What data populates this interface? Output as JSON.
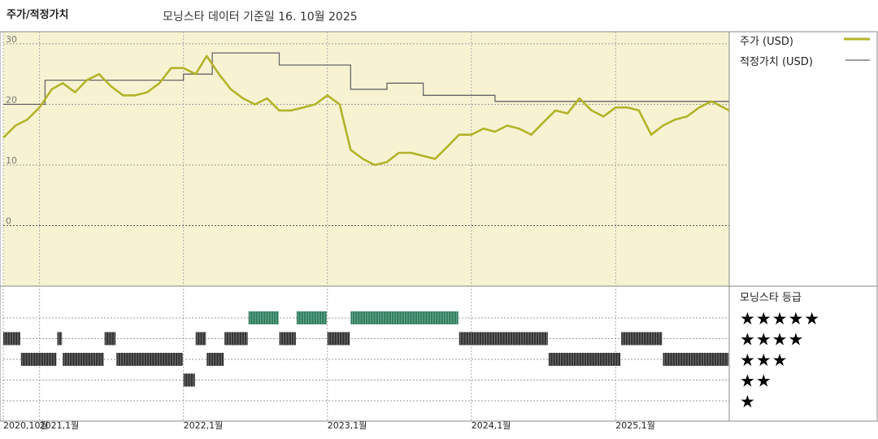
{
  "header": {
    "title": "주가/적정가치",
    "subtitle": "모닝스타 데이터 기준일 16. 10월 2025"
  },
  "legend": {
    "price_label": "주가 (USD)",
    "fair_label": "적정가치 (USD)",
    "rating_title": "모닝스타 등급"
  },
  "colors": {
    "price": "#b3b32a",
    "fair": "#666666",
    "panel_bg": "#f7f3d2",
    "bar_dark": "#333333",
    "bar_green": "#2f7f5f"
  },
  "chart_data": {
    "type": "line",
    "title": "주가/적정가치",
    "subtitle": "모닝스타 데이터 기준일 16. 10월 2025",
    "y_ticks": [
      30,
      20,
      10,
      0
    ],
    "ylim": [
      -10,
      32
    ],
    "x_tick_labels": [
      "2020,10월",
      "2021,1월",
      "2022,1월",
      "2023,1월",
      "2024,1월",
      "2025,1월"
    ],
    "x_tick_dates": [
      "2020-10",
      "2021-01",
      "2022-01",
      "2023-01",
      "2024-01",
      "2025-01"
    ],
    "xlim": [
      "2020-10-01",
      "2025-10-16"
    ],
    "grid": true,
    "series": [
      {
        "name": "주가 (USD)",
        "points": [
          [
            "2020-10-01",
            14.5
          ],
          [
            "2020-11-01",
            16.5
          ],
          [
            "2020-12-01",
            17.5
          ],
          [
            "2021-01-01",
            19.5
          ],
          [
            "2021-02-01",
            22.5
          ],
          [
            "2021-03-01",
            23.5
          ],
          [
            "2021-04-01",
            22.0
          ],
          [
            "2021-05-01",
            24.0
          ],
          [
            "2021-06-01",
            25.0
          ],
          [
            "2021-07-01",
            23.0
          ],
          [
            "2021-08-01",
            21.5
          ],
          [
            "2021-09-01",
            21.5
          ],
          [
            "2021-10-01",
            22.0
          ],
          [
            "2021-11-01",
            23.5
          ],
          [
            "2021-12-01",
            26.0
          ],
          [
            "2022-01-01",
            26.0
          ],
          [
            "2022-02-01",
            25.0
          ],
          [
            "2022-03-01",
            28.0
          ],
          [
            "2022-04-01",
            25.0
          ],
          [
            "2022-05-01",
            22.5
          ],
          [
            "2022-06-01",
            21.0
          ],
          [
            "2022-07-01",
            20.0
          ],
          [
            "2022-08-01",
            21.0
          ],
          [
            "2022-09-01",
            19.0
          ],
          [
            "2022-10-01",
            19.0
          ],
          [
            "2022-11-01",
            19.5
          ],
          [
            "2022-12-01",
            20.0
          ],
          [
            "2023-01-01",
            21.5
          ],
          [
            "2023-02-01",
            20.0
          ],
          [
            "2023-03-01",
            12.5
          ],
          [
            "2023-04-01",
            11.0
          ],
          [
            "2023-05-01",
            10.0
          ],
          [
            "2023-06-01",
            10.5
          ],
          [
            "2023-07-01",
            12.0
          ],
          [
            "2023-08-01",
            12.0
          ],
          [
            "2023-09-01",
            11.5
          ],
          [
            "2023-10-01",
            11.0
          ],
          [
            "2023-11-01",
            13.0
          ],
          [
            "2023-12-01",
            15.0
          ],
          [
            "2024-01-01",
            15.0
          ],
          [
            "2024-02-01",
            16.0
          ],
          [
            "2024-03-01",
            15.5
          ],
          [
            "2024-04-01",
            16.5
          ],
          [
            "2024-05-01",
            16.0
          ],
          [
            "2024-06-01",
            15.0
          ],
          [
            "2024-07-01",
            17.0
          ],
          [
            "2024-08-01",
            19.0
          ],
          [
            "2024-09-01",
            18.5
          ],
          [
            "2024-10-01",
            21.0
          ],
          [
            "2024-11-01",
            19.0
          ],
          [
            "2024-12-01",
            18.0
          ],
          [
            "2025-01-01",
            19.5
          ],
          [
            "2025-02-01",
            19.5
          ],
          [
            "2025-03-01",
            19.0
          ],
          [
            "2025-04-01",
            15.0
          ],
          [
            "2025-05-01",
            16.5
          ],
          [
            "2025-06-01",
            17.5
          ],
          [
            "2025-07-01",
            18.0
          ],
          [
            "2025-08-01",
            19.5
          ],
          [
            "2025-09-01",
            20.5
          ],
          [
            "2025-10-16",
            19.0
          ]
        ]
      },
      {
        "name": "적정가치 (USD)",
        "step": true,
        "points": [
          [
            "2020-10-01",
            20.0
          ],
          [
            "2021-01-15",
            20.0
          ],
          [
            "2021-01-15",
            24.0
          ],
          [
            "2022-01-01",
            24.0
          ],
          [
            "2022-01-01",
            25.0
          ],
          [
            "2022-03-15",
            25.0
          ],
          [
            "2022-03-15",
            28.5
          ],
          [
            "2022-09-01",
            28.5
          ],
          [
            "2022-09-01",
            26.5
          ],
          [
            "2023-03-01",
            26.5
          ],
          [
            "2023-03-01",
            22.5
          ],
          [
            "2023-06-01",
            22.5
          ],
          [
            "2023-06-01",
            23.5
          ],
          [
            "2023-09-01",
            23.5
          ],
          [
            "2023-09-01",
            21.5
          ],
          [
            "2024-03-01",
            21.5
          ],
          [
            "2024-03-01",
            20.5
          ],
          [
            "2025-10-16",
            20.5
          ]
        ]
      }
    ],
    "rating_levels": [
      "★★★★★",
      "★★★★",
      "★★★",
      "★★",
      "★"
    ],
    "rating_segments": [
      [
        "2020-10-01",
        "2020-11-15",
        4
      ],
      [
        "2020-11-15",
        "2021-02-15",
        3
      ],
      [
        "2021-02-15",
        "2021-03-01",
        4
      ],
      [
        "2021-03-01",
        "2021-06-15",
        3
      ],
      [
        "2021-06-15",
        "2021-07-15",
        4
      ],
      [
        "2021-07-15",
        "2022-01-01",
        3
      ],
      [
        "2022-01-01",
        "2022-02-01",
        2
      ],
      [
        "2022-02-01",
        "2022-03-01",
        4
      ],
      [
        "2022-03-01",
        "2022-04-15",
        3
      ],
      [
        "2022-04-15",
        "2022-06-15",
        4
      ],
      [
        "2022-06-15",
        "2022-09-01",
        5
      ],
      [
        "2022-09-01",
        "2022-10-15",
        4
      ],
      [
        "2022-10-15",
        "2023-01-01",
        5
      ],
      [
        "2023-01-01",
        "2023-03-01",
        4
      ],
      [
        "2023-03-01",
        "2023-12-01",
        5
      ],
      [
        "2023-12-01",
        "2024-07-15",
        4
      ],
      [
        "2024-07-15",
        "2025-01-15",
        3
      ],
      [
        "2025-01-15",
        "2025-05-01",
        4
      ],
      [
        "2025-05-01",
        "2025-10-16",
        3
      ]
    ]
  }
}
